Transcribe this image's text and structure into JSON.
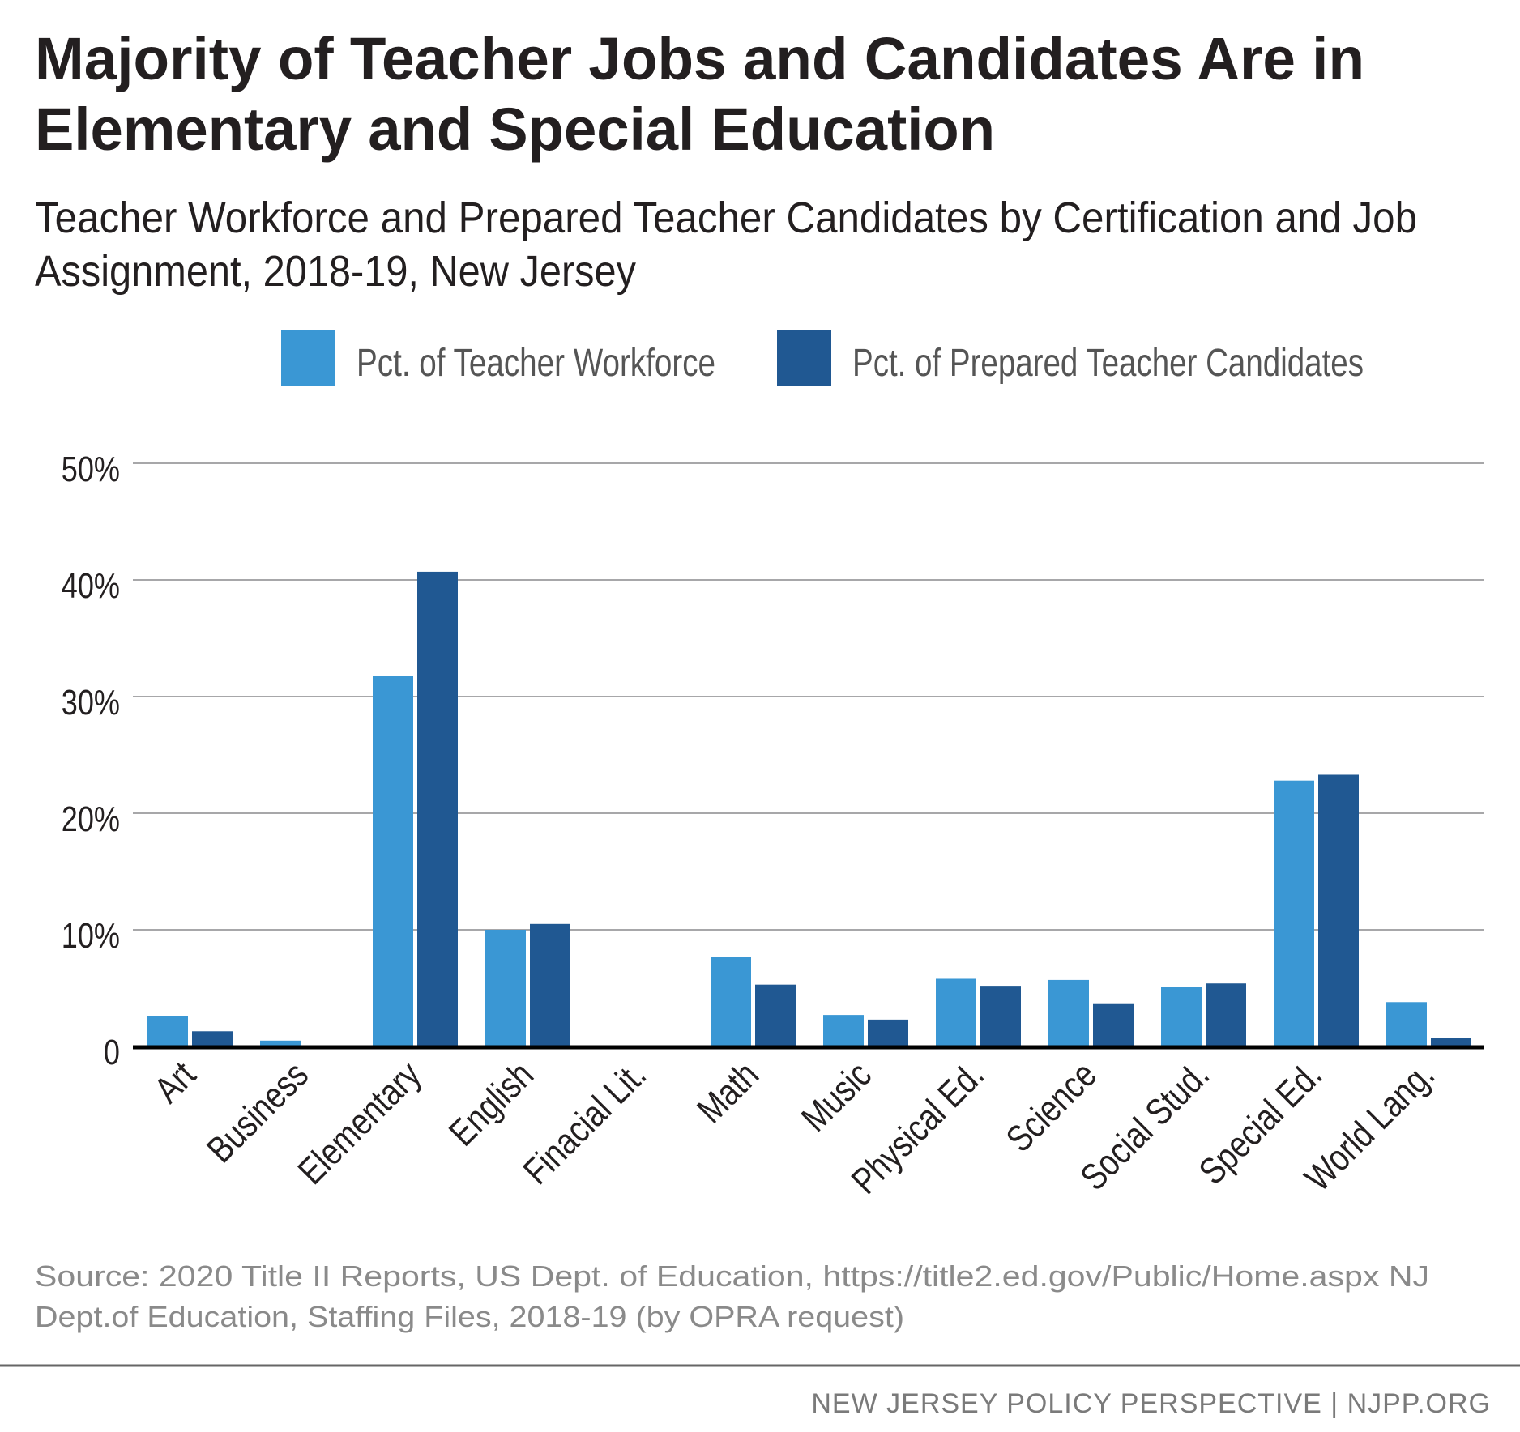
{
  "chart_data": {
    "type": "bar",
    "title": "Majority of Teacher Jobs and Candidates Are in Elementary and Special Education",
    "title_lines": [
      "Majority of Teacher Jobs and Candidates Are in",
      "Elementary and Special Education"
    ],
    "subtitle": "Teacher Workforce and Prepared Teacher Candidates by Certification and Job Assignment, 2018-19, New Jersey",
    "subtitle_lines": [
      "Teacher Workforce and Prepared Teacher Candidates by Certification and Job",
      "Assignment, 2018-19, New Jersey"
    ],
    "categories": [
      "Art",
      "Business",
      "Elementary",
      "English",
      "Finacial Lit.",
      "Math",
      "Music",
      "Physical Ed.",
      "Science",
      "Social Stud.",
      "Special Ed.",
      "World Lang."
    ],
    "series": [
      {
        "name": "Pct. of Teacher Workforce",
        "color": "#3a97d4",
        "values": [
          2.6,
          0.5,
          31.8,
          10.0,
          0,
          7.7,
          2.7,
          5.8,
          5.7,
          5.1,
          22.8,
          3.8
        ]
      },
      {
        "name": "Pct. of Prepared Teacher Candidates",
        "color": "#205892",
        "values": [
          1.3,
          0,
          40.7,
          10.5,
          0,
          5.3,
          2.3,
          5.2,
          3.7,
          5.4,
          23.3,
          0.7
        ]
      }
    ],
    "xlabel": "",
    "ylabel": "",
    "ylim": [
      0,
      50
    ],
    "yticks": [
      0,
      10,
      20,
      30,
      40,
      50
    ],
    "ytick_labels": [
      "0",
      "10%",
      "20%",
      "30%",
      "40%",
      "50%"
    ],
    "grid": true,
    "legend_position": "top"
  },
  "source_lines": [
    "Source: 2020 Title II Reports, US Dept. of Education, https://title2.ed.gov/Public/Home.aspx  NJ",
    "Dept.of Education, Staffing Files, 2018-19 (by OPRA request)"
  ],
  "footer": "NEW JERSEY POLICY PERSPECTIVE | NJPP.ORG"
}
